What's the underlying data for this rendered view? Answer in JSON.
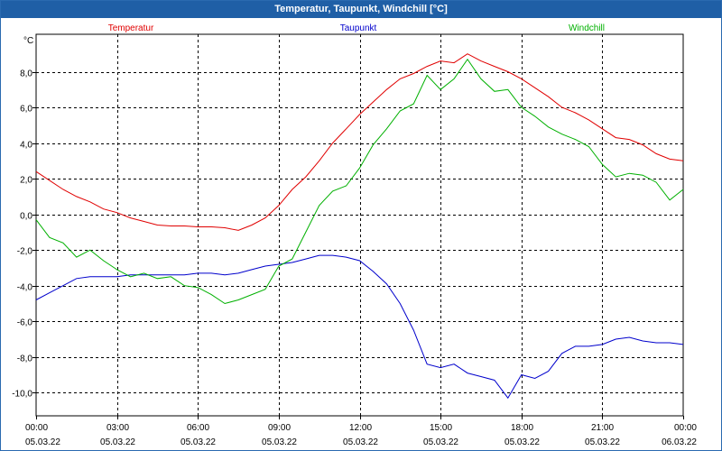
{
  "window": {
    "title": "Temperatur, Taupunkt, Windchill [°C]"
  },
  "chart_data": {
    "type": "line",
    "title": "Temperatur, Taupunkt, Windchill [°C]",
    "ylabel": "°C",
    "ylim": [
      -11.3,
      10.1
    ],
    "xlim": [
      0,
      24
    ],
    "grid": true,
    "y_ticks": [
      {
        "value": 8,
        "label": "8,0"
      },
      {
        "value": 6,
        "label": "6,0"
      },
      {
        "value": 4,
        "label": "4,0"
      },
      {
        "value": 2,
        "label": "2,0"
      },
      {
        "value": 0,
        "label": "0,0"
      },
      {
        "value": -2,
        "label": "-2,0"
      },
      {
        "value": -4,
        "label": "-4,0"
      },
      {
        "value": -6,
        "label": "-6,0"
      },
      {
        "value": -8,
        "label": "-8,0"
      },
      {
        "value": -10,
        "label": "-10,0"
      }
    ],
    "x_ticks": [
      {
        "value": 0,
        "time": "00:00",
        "date": "05.03.22"
      },
      {
        "value": 3,
        "time": "03:00",
        "date": "05.03.22"
      },
      {
        "value": 6,
        "time": "06:00",
        "date": "05.03.22"
      },
      {
        "value": 9,
        "time": "09:00",
        "date": "05.03.22"
      },
      {
        "value": 12,
        "time": "12:00",
        "date": "05.03.22"
      },
      {
        "value": 15,
        "time": "15:00",
        "date": "05.03.22"
      },
      {
        "value": 18,
        "time": "18:00",
        "date": "05.03.22"
      },
      {
        "value": 21,
        "time": "21:00",
        "date": "05.03.22"
      },
      {
        "value": 24,
        "time": "00:00",
        "date": "06.03.22"
      }
    ],
    "series": [
      {
        "name": "Temperatur",
        "color": "#e00000",
        "x": [
          0,
          0.5,
          1,
          1.5,
          2,
          2.5,
          3,
          3.5,
          4,
          4.5,
          5,
          5.5,
          6,
          6.5,
          7,
          7.5,
          8,
          8.5,
          9,
          9.5,
          10,
          10.5,
          11,
          11.5,
          12,
          12.5,
          13,
          13.5,
          14,
          14.5,
          15,
          15.5,
          16,
          16.5,
          17,
          17.5,
          18,
          18.5,
          19,
          19.5,
          20,
          20.5,
          21,
          21.5,
          22,
          22.5,
          23,
          23.5,
          24
        ],
        "values": [
          2.4,
          1.9,
          1.4,
          1.0,
          0.7,
          0.3,
          0.1,
          -0.2,
          -0.4,
          -0.6,
          -0.65,
          -0.65,
          -0.7,
          -0.7,
          -0.75,
          -0.9,
          -0.6,
          -0.2,
          0.5,
          1.4,
          2.1,
          3.0,
          4.0,
          4.8,
          5.6,
          6.3,
          7.0,
          7.6,
          7.9,
          8.3,
          8.6,
          8.5,
          9.0,
          8.6,
          8.3,
          8.0,
          7.6,
          7.1,
          6.6,
          6.0,
          5.7,
          5.3,
          4.8,
          4.3,
          4.2,
          3.9,
          3.4,
          3.1,
          3.0
        ]
      },
      {
        "name": "Taupunkt",
        "color": "#0000cc",
        "x": [
          0,
          0.5,
          1,
          1.5,
          2,
          2.5,
          3,
          3.5,
          4,
          4.5,
          5,
          5.5,
          6,
          6.5,
          7,
          7.5,
          8,
          8.5,
          9,
          9.5,
          10,
          10.5,
          11,
          11.5,
          12,
          12.5,
          13,
          13.5,
          14,
          14.5,
          15,
          15.5,
          16,
          16.5,
          17,
          17.5,
          18,
          18.5,
          19,
          19.5,
          20,
          20.5,
          21,
          21.5,
          22,
          22.5,
          23,
          23.5,
          24
        ],
        "values": [
          -4.8,
          -4.4,
          -4.0,
          -3.6,
          -3.5,
          -3.5,
          -3.5,
          -3.4,
          -3.4,
          -3.4,
          -3.4,
          -3.4,
          -3.3,
          -3.3,
          -3.4,
          -3.3,
          -3.1,
          -2.9,
          -2.8,
          -2.7,
          -2.5,
          -2.3,
          -2.3,
          -2.4,
          -2.6,
          -3.2,
          -3.9,
          -5.0,
          -6.5,
          -8.4,
          -8.6,
          -8.4,
          -8.9,
          -9.1,
          -9.3,
          -10.3,
          -9.0,
          -9.2,
          -8.8,
          -7.8,
          -7.4,
          -7.4,
          -7.3,
          -7.0,
          -6.9,
          -7.1,
          -7.2,
          -7.2,
          -7.3
        ]
      },
      {
        "name": "Windchill",
        "color": "#00b000",
        "x": [
          0,
          0.5,
          1,
          1.5,
          2,
          2.5,
          3,
          3.5,
          4,
          4.5,
          5,
          5.5,
          6,
          6.5,
          7,
          7.5,
          8,
          8.5,
          9,
          9.5,
          10,
          10.5,
          11,
          11.5,
          12,
          12.5,
          13,
          13.5,
          14,
          14.5,
          15,
          15.5,
          16,
          16.5,
          17,
          17.5,
          18,
          18.5,
          19,
          19.5,
          20,
          20.5,
          21,
          21.5,
          22,
          22.5,
          23,
          23.5,
          24
        ],
        "values": [
          -0.3,
          -1.3,
          -1.6,
          -2.4,
          -2.0,
          -2.6,
          -3.1,
          -3.5,
          -3.3,
          -3.6,
          -3.5,
          -4.0,
          -4.1,
          -4.5,
          -5.0,
          -4.8,
          -4.5,
          -4.2,
          -2.9,
          -2.5,
          -1.0,
          0.5,
          1.3,
          1.6,
          2.6,
          3.9,
          4.8,
          5.8,
          6.2,
          7.8,
          7.0,
          7.6,
          8.7,
          7.6,
          6.9,
          7.0,
          6.0,
          5.5,
          4.9,
          4.5,
          4.2,
          3.8,
          2.8,
          2.1,
          2.3,
          2.2,
          1.8,
          0.8,
          1.4
        ]
      }
    ]
  }
}
